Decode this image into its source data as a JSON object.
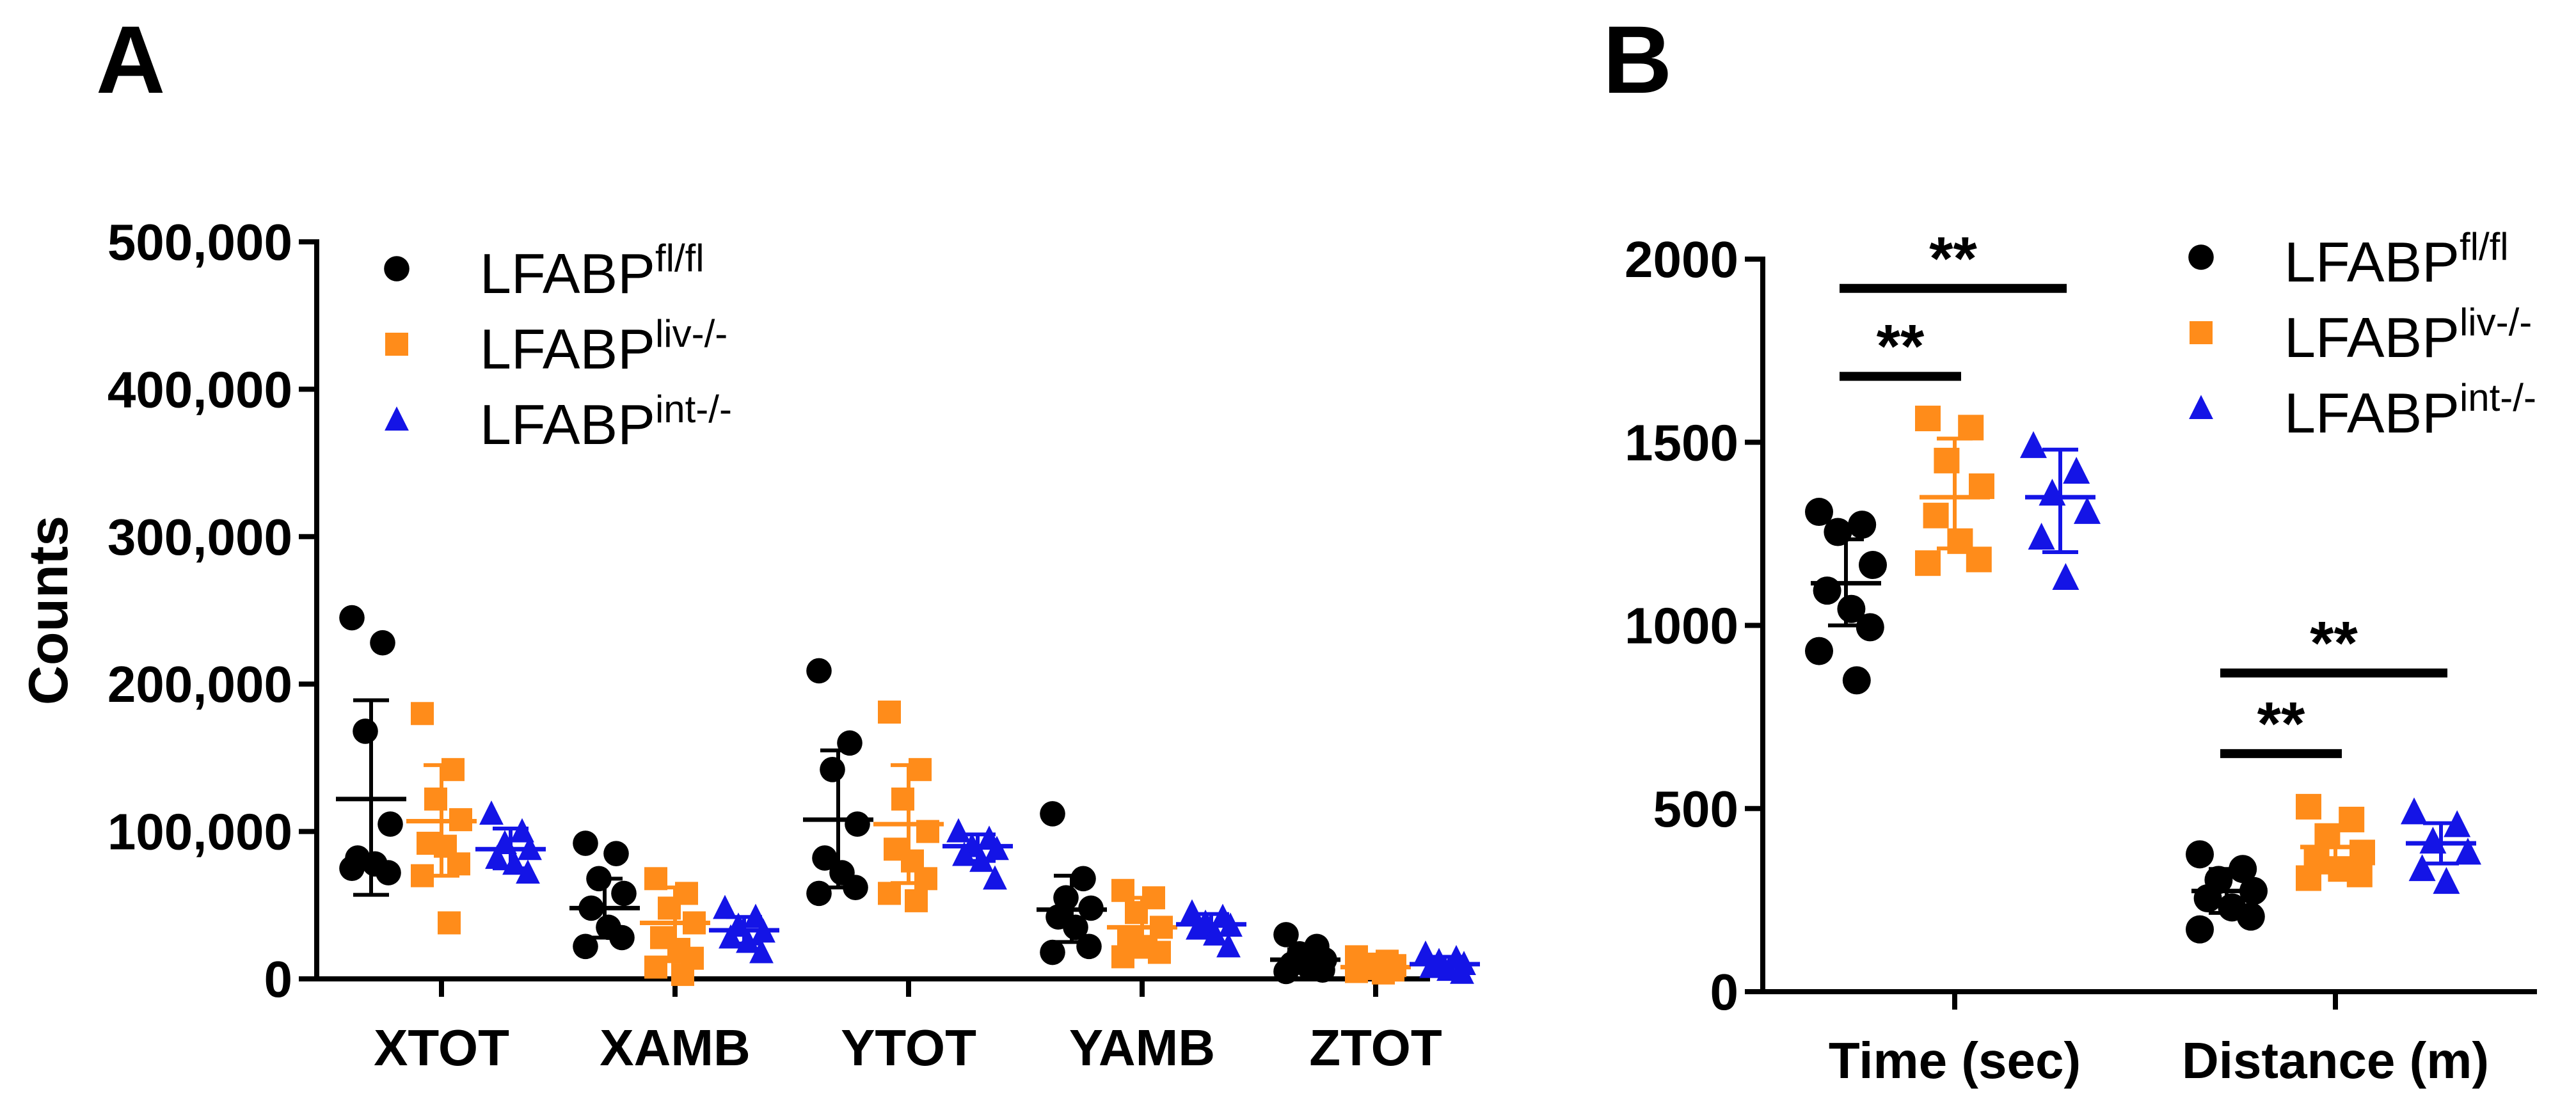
{
  "figure": {
    "panel_a_letter": "A",
    "panel_b_letter": "B"
  },
  "legend": [
    {
      "base": "LFABP",
      "sup": "fl/fl",
      "color": "#000000",
      "shape": "circle"
    },
    {
      "base": "LFABP",
      "sup": "liv-/-",
      "color": "#FF8C1A",
      "shape": "square"
    },
    {
      "base": "LFABP",
      "sup": "int-/-",
      "color": "#1414E6",
      "shape": "triangle"
    }
  ],
  "chart_data": [
    {
      "type": "scatter",
      "panel": "A",
      "ylabel": "Counts",
      "xlabel": "",
      "ylim": [
        0,
        500000
      ],
      "yticks": [
        0,
        100000,
        200000,
        300000,
        400000,
        500000
      ],
      "ytick_labels": [
        "0",
        "100,000",
        "200,000",
        "300,000",
        "400,000",
        "500,000"
      ],
      "categories": [
        "XTOT",
        "XAMB",
        "YTOT",
        "YAMB",
        "ZTOT"
      ],
      "legend_position": "top",
      "series": [
        {
          "name": "LFABP fl/fl",
          "color": "#000000",
          "shape": "circle",
          "points": [
            [
              245000,
              228000,
              168000,
              105000,
              82000,
              78000,
              72000,
              75000
            ],
            [
              92000,
              85000,
              68000,
              58000,
              48000,
              35000,
              28000,
              22000
            ],
            [
              209000,
              160000,
              142000,
              105000,
              82000,
              72000,
              62000,
              58000
            ],
            [
              112000,
              68000,
              55000,
              48000,
              42000,
              35000,
              22000,
              18000
            ],
            [
              30000,
              22000,
              17000,
              13000,
              10000,
              8000,
              6000,
              5000
            ]
          ],
          "mean": [
            122000,
            48000,
            108000,
            47000,
            13000
          ],
          "error": [
            [
              57000,
              189000
            ],
            [
              28000,
              68000
            ],
            [
              62000,
              155000
            ],
            [
              25000,
              70000
            ],
            [
              6000,
              20000
            ]
          ]
        },
        {
          "name": "LFABP liv-/-",
          "color": "#FF8C1A",
          "shape": "square",
          "points": [
            [
              180000,
              142000,
              122000,
              108000,
              92000,
              90000,
              78000,
              70000,
              38000
            ],
            [
              68000,
              58000,
              48000,
              38000,
              28000,
              20000,
              14000,
              8000,
              3000
            ],
            [
              181000,
              142000,
              122000,
              100000,
              88000,
              80000,
              68000,
              58000,
              53000
            ],
            [
              60000,
              55000,
              45000,
              35000,
              28000,
              22000,
              18000,
              15000
            ],
            [
              15000,
              12000,
              10000,
              9000,
              8000,
              7000,
              6000,
              5000,
              4000
            ]
          ],
          "mean": [
            107000,
            38000,
            105000,
            35000,
            8000
          ],
          "error": [
            [
              70000,
              145000
            ],
            [
              12000,
              62000
            ],
            [
              65000,
              145000
            ],
            [
              15000,
              55000
            ],
            [
              5000,
              12000
            ]
          ]
        },
        {
          "name": "LFABP int-/-",
          "color": "#1414E6",
          "shape": "triangle",
          "points": [
            [
              112000,
              100000,
              92000,
              88000,
              82000,
              78000,
              72000
            ],
            [
              48000,
              42000,
              36000,
              32000,
              28000,
              25000,
              18000
            ],
            [
              100000,
              95000,
              90000,
              88000,
              84000,
              80000,
              68000
            ],
            [
              45000,
              42000,
              38000,
              36000,
              34000,
              30000,
              22000
            ],
            [
              17000,
              14000,
              12000,
              10000,
              8000,
              6000,
              4000
            ]
          ],
          "mean": [
            88000,
            33000,
            90000,
            37000,
            10000
          ],
          "error": [
            [
              75000,
              102000
            ],
            [
              24000,
              42000
            ],
            [
              80000,
              98000
            ],
            [
              30000,
              44000
            ],
            [
              5000,
              15000
            ]
          ]
        }
      ]
    },
    {
      "type": "scatter",
      "panel": "B",
      "ylabel": "",
      "xlabel": "",
      "ylim": [
        0,
        2000
      ],
      "yticks": [
        0,
        500,
        1000,
        1500,
        2000
      ],
      "ytick_labels": [
        "0",
        "500",
        "1000",
        "1500",
        "2000"
      ],
      "categories": [
        "Time (sec)",
        "Distance (m)"
      ],
      "legend_position": "top-right",
      "significance": [
        {
          "category": 0,
          "from": 0,
          "to": 1,
          "y": 1680,
          "label": "**"
        },
        {
          "category": 0,
          "from": 0,
          "to": 2,
          "y": 1920,
          "label": "**"
        },
        {
          "category": 1,
          "from": 0,
          "to": 1,
          "y": 650,
          "label": "**"
        },
        {
          "category": 1,
          "from": 0,
          "to": 2,
          "y": 870,
          "label": "**"
        }
      ],
      "series": [
        {
          "name": "LFABP fl/fl",
          "color": "#000000",
          "shape": "circle",
          "points": [
            [
              1310,
              1275,
              1255,
              1165,
              1095,
              1045,
              995,
              930,
              850
            ],
            [
              375,
              335,
              305,
              275,
              255,
              230,
              205,
              170
            ]
          ],
          "mean": [
            1115,
            275
          ],
          "error": [
            [
              1000,
              1235
            ],
            [
              215,
              335
            ]
          ]
        },
        {
          "name": "LFABP liv-/-",
          "color": "#FF8C1A",
          "shape": "square",
          "points": [
            [
              1565,
              1540,
              1450,
              1380,
              1300,
              1230,
              1180,
              1170
            ],
            [
              505,
              470,
              425,
              380,
              355,
              335,
              320,
              310
            ]
          ],
          "mean": [
            1350,
            395
          ],
          "error": [
            [
              1210,
              1510
            ],
            [
              345,
              445
            ]
          ]
        },
        {
          "name": "LFABP int-/-",
          "color": "#1414E6",
          "shape": "triangle",
          "points": [
            [
              1490,
              1420,
              1360,
              1310,
              1240,
              1130
            ],
            [
              490,
              455,
              410,
              380,
              335,
              300
            ]
          ],
          "mean": [
            1350,
            405
          ],
          "error": [
            [
              1200,
              1480
            ],
            [
              350,
              460
            ]
          ]
        }
      ]
    }
  ]
}
